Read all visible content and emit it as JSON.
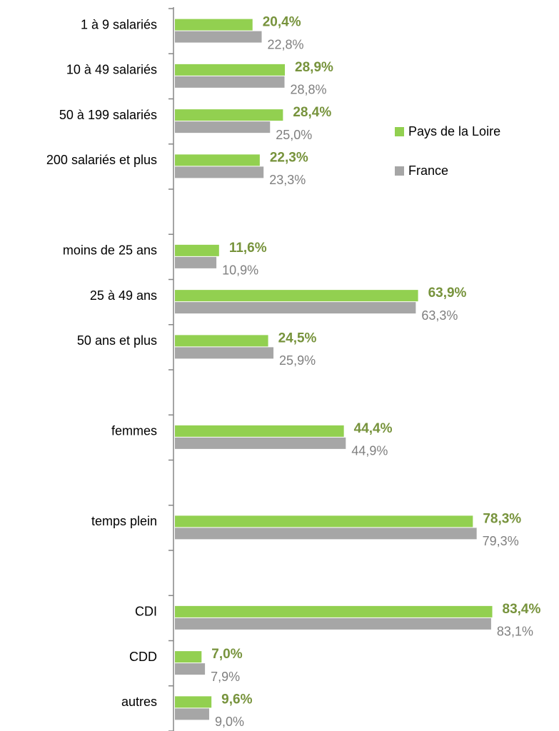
{
  "chart_data": {
    "type": "bar",
    "orientation": "horizontal",
    "categories": [
      "1 à 9 salariés",
      "10 à 49 salariés",
      "50 à 199 salariés",
      "200 salariés et plus",
      null,
      "moins de 25 ans",
      "25 à 49 ans",
      "50 ans et plus",
      null,
      "femmes",
      null,
      "temps plein",
      null,
      "CDI",
      "CDD",
      "autres"
    ],
    "series": [
      {
        "name": "Pays de la Loire",
        "color": "#92d050",
        "values": [
          20.4,
          28.9,
          28.4,
          22.3,
          null,
          11.6,
          63.9,
          24.5,
          null,
          44.4,
          null,
          78.3,
          null,
          83.4,
          7.0,
          9.6
        ],
        "value_labels": [
          "20,4%",
          "28,9%",
          "28,4%",
          "22,3%",
          null,
          "11,6%",
          "63,9%",
          "24,5%",
          null,
          "44,4%",
          null,
          "78,3%",
          null,
          "83,4%",
          "7,0%",
          "9,6%"
        ]
      },
      {
        "name": "France",
        "color": "#a6a6a6",
        "values": [
          22.8,
          28.8,
          25.0,
          23.3,
          null,
          10.9,
          63.3,
          25.9,
          null,
          44.9,
          null,
          79.3,
          null,
          83.1,
          7.9,
          9.0
        ],
        "value_labels": [
          "22,8%",
          "28,8%",
          "25,0%",
          "23,3%",
          null,
          "10,9%",
          "63,3%",
          "25,9%",
          null,
          "44,9%",
          null,
          "79,3%",
          null,
          "83,1%",
          "7,9%",
          "9,0%"
        ]
      }
    ],
    "legend": "right"
  }
}
